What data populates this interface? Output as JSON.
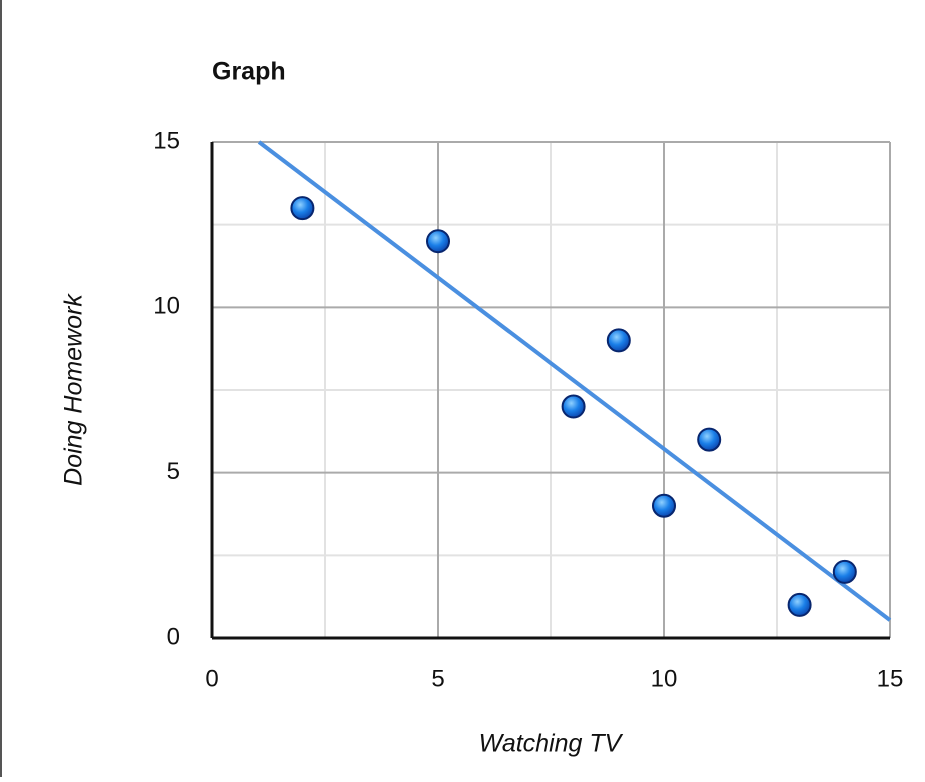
{
  "chart_data": {
    "type": "scatter",
    "title": "Graph",
    "x_label": "Watching TV",
    "y_label": "Doing Homework",
    "x": [
      2,
      5,
      8,
      9,
      10,
      11,
      13,
      14
    ],
    "values": [
      13,
      12,
      7,
      9,
      4,
      6,
      1,
      2
    ],
    "color": "#1a7fe8",
    "trendline": {
      "x": [
        1.04,
        15
      ],
      "values": [
        15,
        0.54
      ],
      "color": "#4a8fe0"
    },
    "xlim": [
      0,
      15
    ],
    "ylim": [
      0,
      15
    ],
    "xticks": [
      0,
      5,
      10,
      15
    ],
    "yticks": [
      0,
      5,
      10,
      15
    ],
    "xminor": [
      2.5,
      7.5,
      12.5
    ],
    "yminor": [
      2.5,
      7.5,
      12.5
    ],
    "grid": true
  }
}
